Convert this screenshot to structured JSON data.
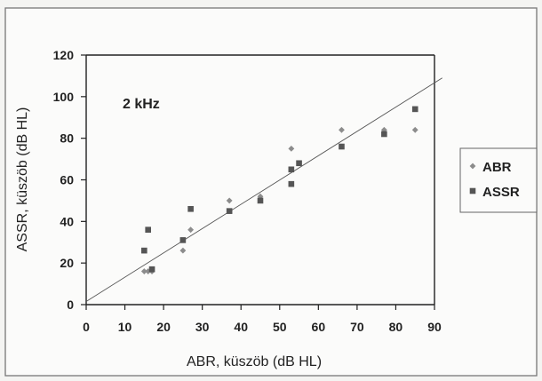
{
  "chart_data": {
    "type": "scatter",
    "title": "",
    "annotation": "2 kHz",
    "xlabel": "ABR, küszöb (dB HL)",
    "ylabel": "ASSR, küszöb (dB HL)",
    "xlim": [
      0,
      90
    ],
    "ylim": [
      0,
      120
    ],
    "xticks": [
      0,
      10,
      20,
      30,
      40,
      50,
      60,
      70,
      80,
      90
    ],
    "yticks": [
      0,
      20,
      40,
      60,
      80,
      100,
      120
    ],
    "grid": false,
    "legend_position": "right",
    "series": [
      {
        "name": "ABR",
        "marker": "diamond",
        "color": "#8c8c8c",
        "points": [
          [
            15,
            16
          ],
          [
            16,
            16
          ],
          [
            17,
            16
          ],
          [
            25,
            26
          ],
          [
            27,
            36
          ],
          [
            37,
            50
          ],
          [
            45,
            52
          ],
          [
            53,
            75
          ],
          [
            66,
            84
          ],
          [
            77,
            84
          ],
          [
            85,
            84
          ]
        ]
      },
      {
        "name": "ASSR",
        "marker": "square",
        "color": "#555555",
        "points": [
          [
            15,
            26
          ],
          [
            16,
            36
          ],
          [
            17,
            17
          ],
          [
            25,
            31
          ],
          [
            27,
            46
          ],
          [
            37,
            45
          ],
          [
            45,
            50
          ],
          [
            53,
            58
          ],
          [
            53,
            65
          ],
          [
            55,
            68
          ],
          [
            66,
            76
          ],
          [
            77,
            82
          ],
          [
            85,
            94
          ]
        ]
      }
    ],
    "trendline": [
      [
        0,
        1.5
      ],
      [
        92,
        109
      ]
    ]
  }
}
